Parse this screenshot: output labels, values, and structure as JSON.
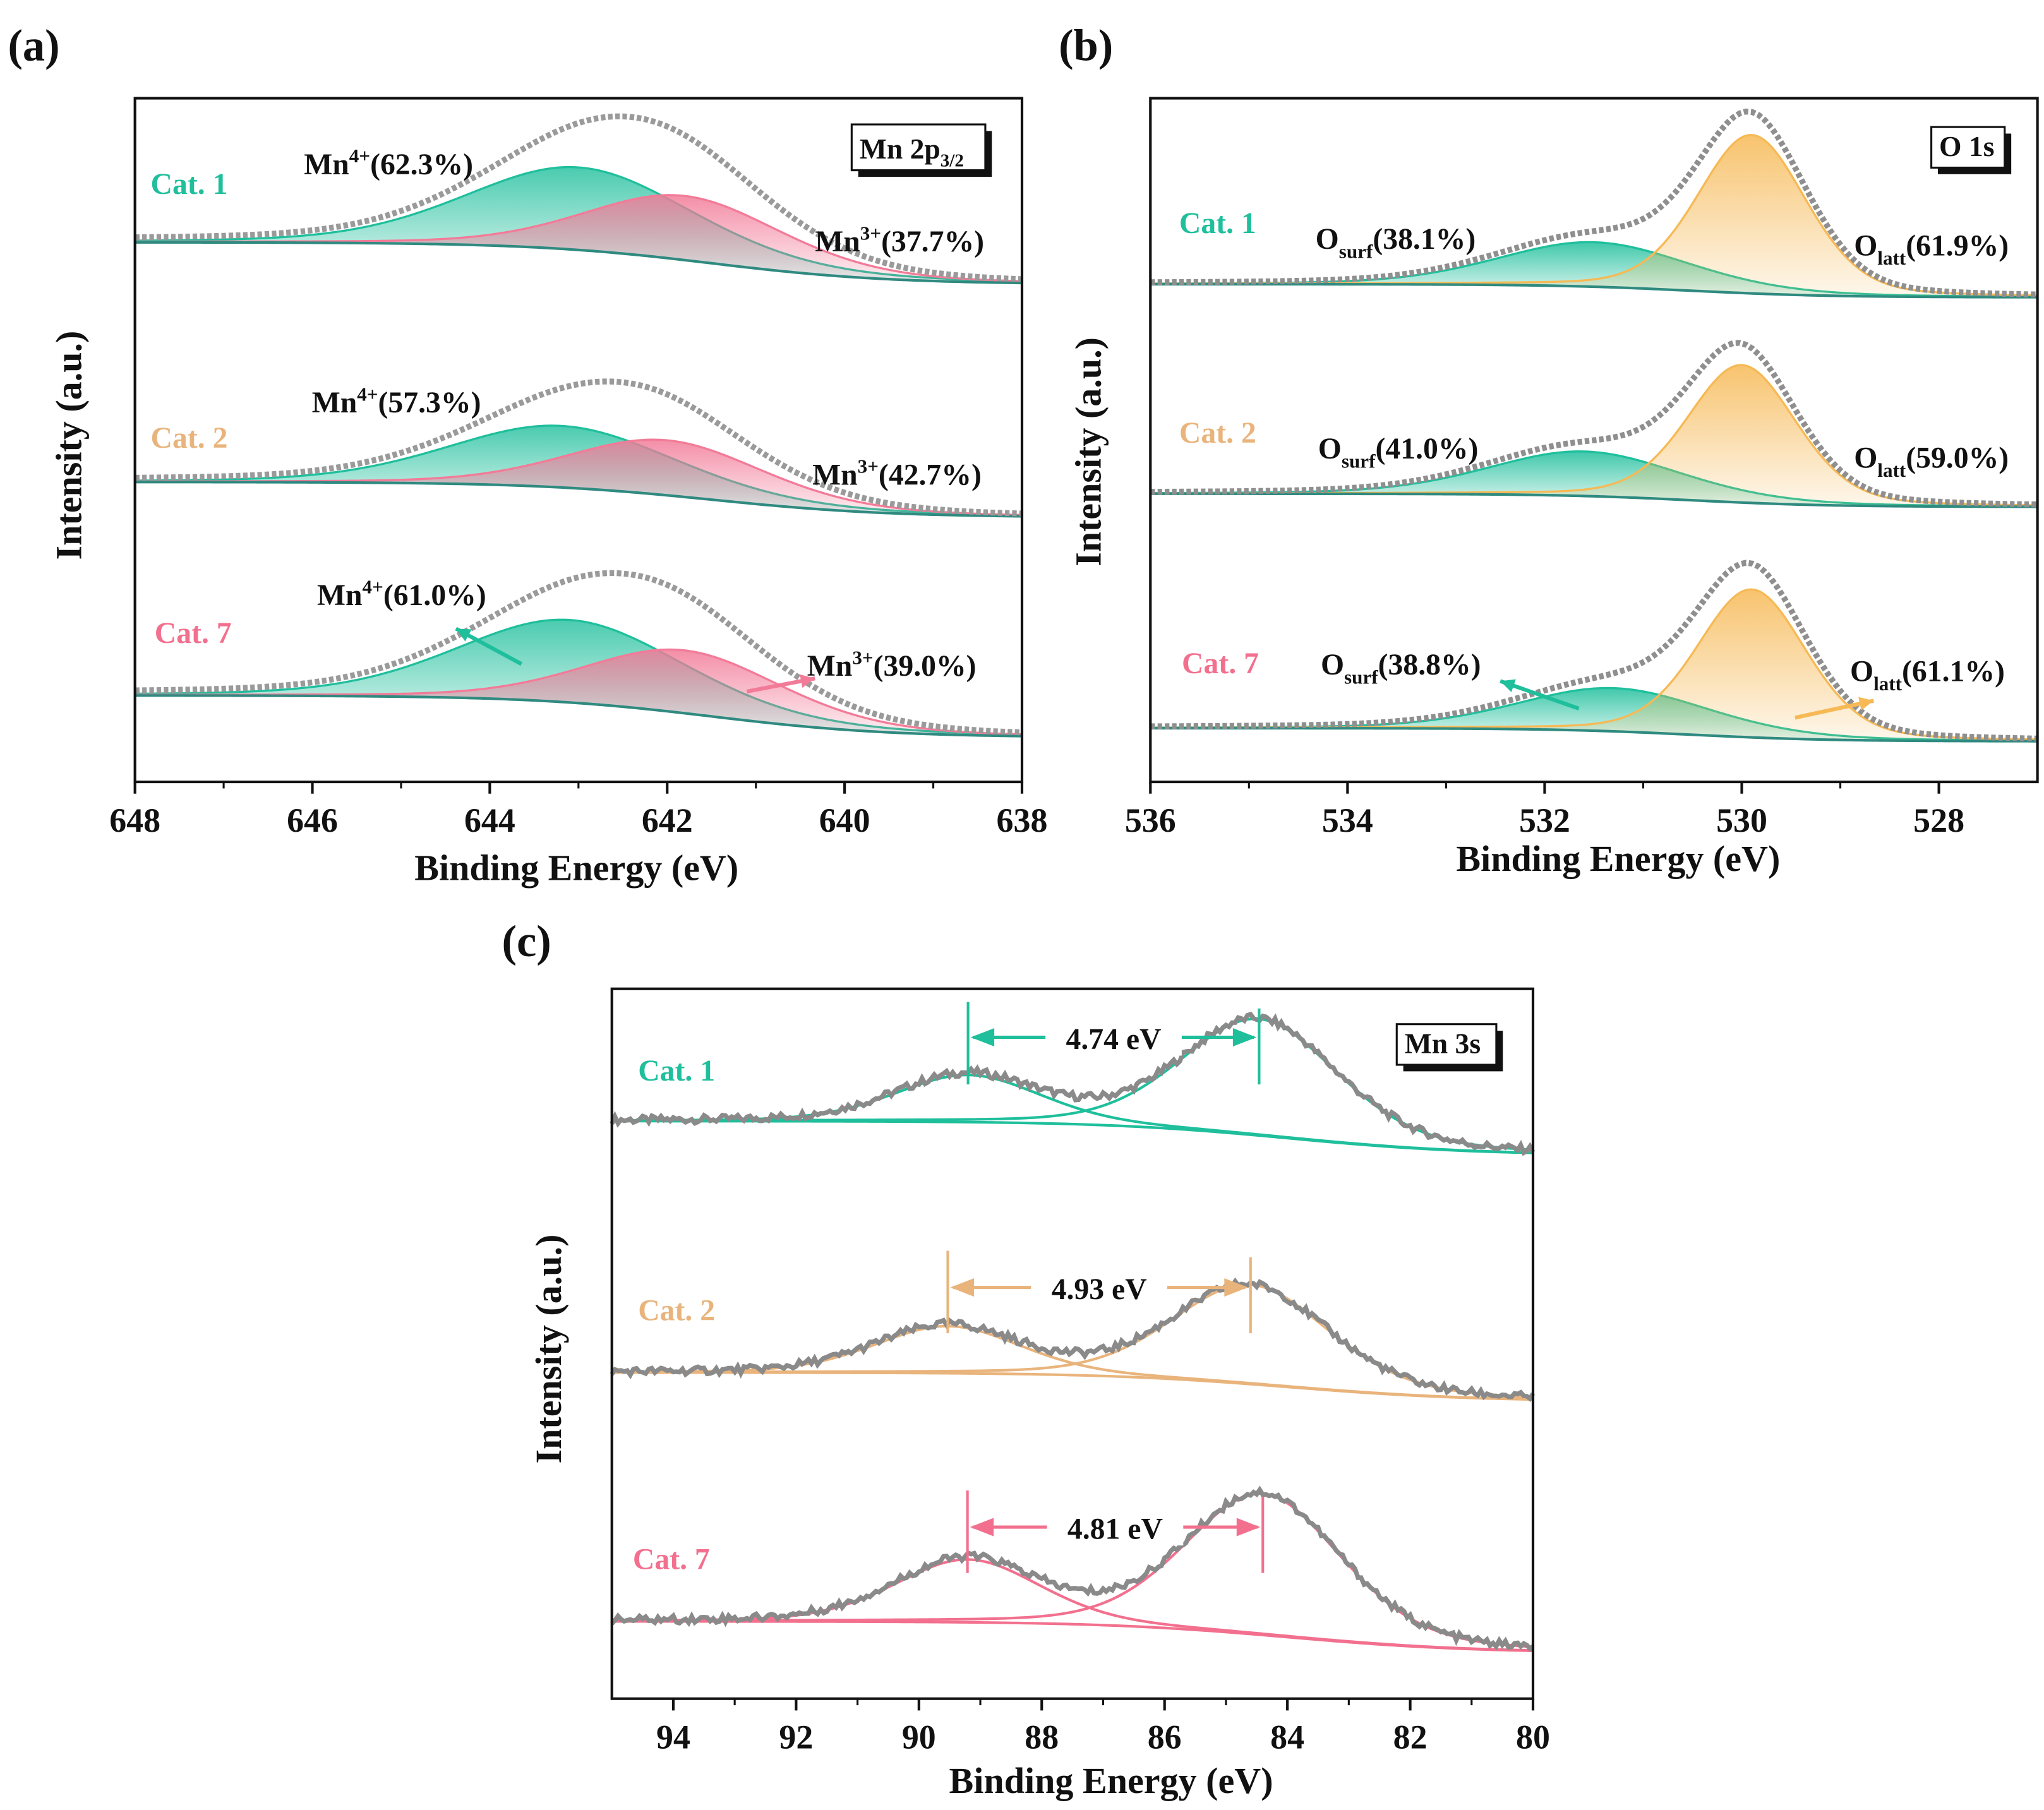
{
  "panels": {
    "a": "(a)",
    "b": "(b)",
    "c": "(c)"
  },
  "chart_data": [
    {
      "id": "a",
      "type": "line",
      "box_label": {
        "main": "Mn 2p",
        "sub": "3/2"
      },
      "xlabel": "Binding Energy (eV)",
      "ylabel": "Intensity (a.u.)",
      "xlim": [
        648,
        638
      ],
      "xticks": [
        648,
        646,
        644,
        642,
        640,
        638
      ],
      "reversed_x": true,
      "colors": {
        "exp": "#9a9a9a",
        "baseline": "#2f8a80"
      },
      "series": [
        {
          "name": "Cat. 1",
          "color": "#1fbf9c",
          "baseline": {
            "step": 32,
            "center": 641.5,
            "width": 1.0
          },
          "peaks": [
            {
              "main": "Mn",
              "sup": "4+",
              "value": "(62.3%)",
              "area_pct": 62.3,
              "center": 643.0,
              "fwhm": 3.0,
              "height": 63,
              "fill": "#1fbf9c"
            },
            {
              "main": "Mn",
              "sup": "3+",
              "value": "(37.7%)",
              "area_pct": 37.7,
              "center": 641.8,
              "fwhm": 2.6,
              "height": 49,
              "fill": "#f27b98"
            }
          ]
        },
        {
          "name": "Cat. 2",
          "color": "#e9b47c",
          "baseline": {
            "step": 27,
            "center": 641.5,
            "width": 1.0
          },
          "peaks": [
            {
              "main": "Mn",
              "sup": "4+",
              "value": "(57.3%)",
              "area_pct": 57.3,
              "center": 643.2,
              "fwhm": 3.0,
              "height": 47,
              "fill": "#1fbf9c"
            },
            {
              "main": "Mn",
              "sup": "3+",
              "value": "(42.7%)",
              "area_pct": 42.7,
              "center": 642.0,
              "fwhm": 2.6,
              "height": 42,
              "fill": "#f27b98"
            }
          ]
        },
        {
          "name": "Cat. 7",
          "color": "#f2708e",
          "baseline": {
            "step": 32,
            "center": 641.5,
            "width": 1.0
          },
          "peaks": [
            {
              "main": "Mn",
              "sup": "4+",
              "value": "(61.0%)",
              "area_pct": 61.0,
              "center": 643.1,
              "fwhm": 3.0,
              "height": 63,
              "fill": "#1fbf9c"
            },
            {
              "main": "Mn",
              "sup": "3+",
              "value": "(39.0%)",
              "area_pct": 39.0,
              "center": 641.8,
              "fwhm": 2.6,
              "height": 48,
              "fill": "#f27b98"
            }
          ]
        }
      ]
    },
    {
      "id": "b",
      "type": "line",
      "box_label": {
        "main": "O 1s",
        "sub": ""
      },
      "xlabel": "Binding Energy (eV)",
      "ylabel": "Intensity (a.u.)",
      "xlim": [
        536,
        527
      ],
      "xticks": [
        536,
        534,
        532,
        530,
        528
      ],
      "reversed_x": true,
      "colors": {
        "exp": "#8f8f8f",
        "baseline": "#2f8a80"
      },
      "series": [
        {
          "name": "Cat. 1",
          "color": "#1fbf9c",
          "baseline": {
            "step": 10,
            "center": 530.5,
            "width": 0.7
          },
          "peaks": [
            {
              "main": "O",
              "sub": "surf",
              "value": "(38.1%)",
              "area_pct": 38.1,
              "center": 531.5,
              "fwhm": 2.3,
              "height": 34,
              "fill": "#1fbf9c"
            },
            {
              "main": "O",
              "sub": "latt",
              "value": "(61.9%)",
              "area_pct": 61.9,
              "center": 529.9,
              "fwhm": 1.3,
              "height": 121,
              "fill": "#f6b955"
            }
          ]
        },
        {
          "name": "Cat. 2",
          "color": "#e9b47c",
          "baseline": {
            "step": 10,
            "center": 530.5,
            "width": 0.7
          },
          "peaks": [
            {
              "main": "O",
              "sub": "surf",
              "value": "(41.0%)",
              "area_pct": 41.0,
              "center": 531.6,
              "fwhm": 2.3,
              "height": 34,
              "fill": "#1fbf9c"
            },
            {
              "main": "O",
              "sub": "latt",
              "value": "(59.0%)",
              "area_pct": 59.0,
              "center": 530.0,
              "fwhm": 1.3,
              "height": 105,
              "fill": "#f6b955"
            }
          ]
        },
        {
          "name": "Cat. 7",
          "color": "#f2708e",
          "baseline": {
            "step": 10,
            "center": 530.5,
            "width": 0.7
          },
          "peaks": [
            {
              "main": "O",
              "sub": "surf",
              "value": "(38.8%)",
              "area_pct": 38.8,
              "center": 531.3,
              "fwhm": 2.3,
              "height": 33,
              "fill": "#1fbf9c"
            },
            {
              "main": "O",
              "sub": "latt",
              "value": "(61.1%)",
              "area_pct": 61.1,
              "center": 529.9,
              "fwhm": 1.3,
              "height": 113,
              "fill": "#f6b955"
            }
          ]
        }
      ]
    },
    {
      "id": "c",
      "type": "line",
      "box_label": {
        "main": "Mn 3s",
        "sub": ""
      },
      "xlabel": "Binding Energy (eV)",
      "ylabel": "Intensity (a.u.)",
      "xlim": [
        95,
        80
      ],
      "xticks": [
        94,
        92,
        90,
        88,
        86,
        84,
        82,
        80
      ],
      "reversed_x": true,
      "colors": {
        "exp": "#8a8a8a"
      },
      "series": [
        {
          "name": "Cat. 1",
          "color": "#1fbf9c",
          "splitting": "4.74 eV",
          "baseline": {
            "step": 26,
            "center": 84.0,
            "width": 1.5
          },
          "peaks": [
            {
              "center": 89.2,
              "fwhm": 2.8,
              "height": 36
            },
            {
              "center": 84.46,
              "fwhm": 3.0,
              "height": 89
            }
          ]
        },
        {
          "name": "Cat. 2",
          "color": "#e9b47c",
          "splitting": "4.93 eV",
          "baseline": {
            "step": 22,
            "center": 84.0,
            "width": 1.5
          },
          "peaks": [
            {
              "center": 89.53,
              "fwhm": 2.8,
              "height": 36
            },
            {
              "center": 84.6,
              "fwhm": 3.0,
              "height": 76
            }
          ]
        },
        {
          "name": "Cat. 7",
          "color": "#f2708e",
          "splitting": "4.81 eV",
          "baseline": {
            "step": 24,
            "center": 84.0,
            "width": 1.5
          },
          "peaks": [
            {
              "center": 89.21,
              "fwhm": 2.8,
              "height": 48
            },
            {
              "center": 84.4,
              "fwhm": 3.0,
              "height": 108
            }
          ]
        }
      ]
    }
  ]
}
